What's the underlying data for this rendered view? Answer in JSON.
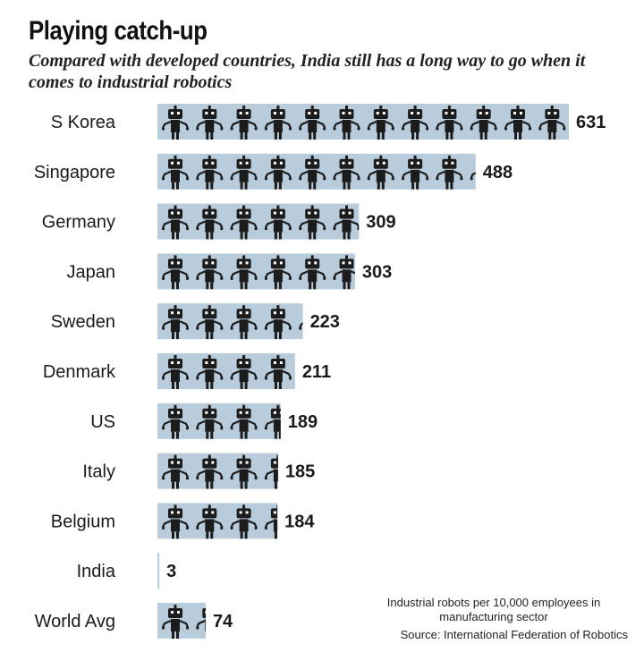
{
  "chart_data": {
    "type": "bar",
    "orientation": "horizontal",
    "title": "Playing catch-up",
    "subtitle": "Compared with developed countries, India still has a long way to go when it comes to industrial robotics",
    "categories": [
      "S Korea",
      "Singapore",
      "Germany",
      "Japan",
      "Sweden",
      "Denmark",
      "US",
      "Italy",
      "Belgium",
      "India",
      "World Avg"
    ],
    "values": [
      631,
      488,
      309,
      303,
      223,
      211,
      189,
      185,
      184,
      3,
      74
    ],
    "xlim": [
      0,
      631
    ],
    "grid": false,
    "data_labels": true,
    "mark_icon": "robot-icon",
    "colors": {
      "bar_fill": "#b8ccdb",
      "icon": "#1c1c1c",
      "text": "#1a1a1a"
    }
  },
  "note": "Industrial robots per 10,000 employees in manufacturing sector",
  "source": "Source: International Federation of Robotics"
}
